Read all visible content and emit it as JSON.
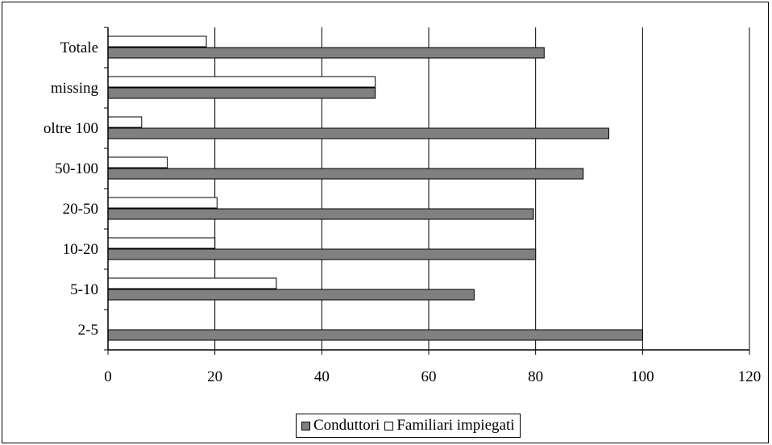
{
  "chart_data": {
    "type": "bar",
    "orientation": "horizontal",
    "categories": [
      "2-5",
      "5-10",
      "10-20",
      "20-50",
      "50-100",
      "oltre 100",
      "missing",
      "Totale"
    ],
    "series": [
      {
        "name": "Conduttori",
        "values": [
          100,
          68.5,
          80,
          79.6,
          88.9,
          93.7,
          50,
          81.6
        ]
      },
      {
        "name": "Familiari impiegati",
        "values": [
          0,
          31.5,
          20,
          20.4,
          11.1,
          6.3,
          50,
          18.4
        ]
      }
    ],
    "xlim": [
      0,
      120
    ],
    "xticks": [
      "0",
      "20",
      "40",
      "60",
      "80",
      "100",
      "120"
    ],
    "grid": "vertical",
    "legend_position": "bottom",
    "colors": {
      "Conduttori": "#808080",
      "Familiari impiegati": "#ffffff"
    },
    "title": "",
    "xlabel": "",
    "ylabel": ""
  },
  "legend": {
    "conduttori_label": "Conduttori",
    "familiari_label": "Familiari impiegati"
  }
}
